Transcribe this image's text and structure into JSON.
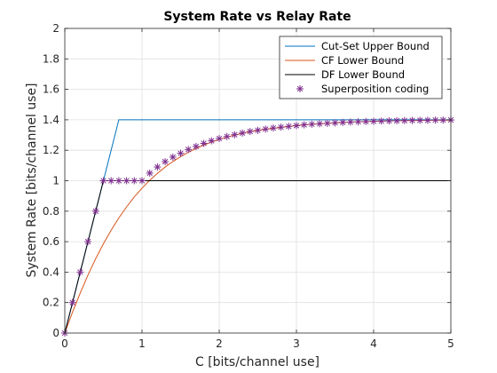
{
  "chart_data": {
    "type": "line",
    "title": "System Rate vs Relay Rate",
    "xlabel": "C [bits/channel use]",
    "ylabel": "System Rate [bits/channel use]",
    "xlim": [
      0,
      5
    ],
    "ylim": [
      0,
      2
    ],
    "xticks": [
      0,
      1,
      2,
      3,
      4,
      5
    ],
    "yticks": [
      0,
      0.2,
      0.4,
      0.6,
      0.8,
      1,
      1.2,
      1.4,
      1.6,
      1.8,
      2
    ],
    "grid": true,
    "legend_position": "top-right",
    "series": [
      {
        "name": "Cut-Set Upper Bound",
        "style": "line",
        "color": "#0072BD",
        "x": [
          0,
          0.5,
          0.7,
          5
        ],
        "y": [
          0,
          1.0,
          1.4,
          1.4
        ]
      },
      {
        "name": "CF Lower Bound",
        "style": "line",
        "color": "#D95319",
        "x": [
          0,
          0.1,
          0.2,
          0.3,
          0.4,
          0.5,
          0.6,
          0.7,
          0.8,
          0.9,
          1.0,
          1.1,
          1.2,
          1.3,
          1.4,
          1.5,
          1.6,
          1.7,
          1.8,
          1.9,
          2.0,
          2.2,
          2.4,
          2.6,
          2.8,
          3.0,
          3.2,
          3.4,
          3.6,
          3.8,
          4.0,
          4.2,
          4.4,
          4.6,
          4.8,
          5.0
        ],
        "y": [
          0,
          0.137,
          0.263,
          0.38,
          0.488,
          0.586,
          0.675,
          0.756,
          0.828,
          0.894,
          0.951,
          1.003,
          1.049,
          1.09,
          1.126,
          1.158,
          1.187,
          1.212,
          1.234,
          1.254,
          1.271,
          1.3,
          1.322,
          1.338,
          1.35,
          1.362,
          1.371,
          1.377,
          1.383,
          1.387,
          1.39,
          1.393,
          1.395,
          1.396,
          1.397,
          1.398
        ]
      },
      {
        "name": "DF Lower Bound",
        "style": "line",
        "color": "#000000",
        "x": [
          0,
          0.5,
          5
        ],
        "y": [
          0,
          1.0,
          1.0
        ]
      },
      {
        "name": "Superposition coding",
        "style": "marker",
        "marker": "asterisk",
        "color": "#7E2F8E",
        "x": [
          0,
          0.1,
          0.2,
          0.3,
          0.4,
          0.5,
          0.6,
          0.7,
          0.8,
          0.9,
          1.0,
          1.1,
          1.2,
          1.3,
          1.4,
          1.5,
          1.6,
          1.7,
          1.8,
          1.9,
          2.0,
          2.1,
          2.2,
          2.3,
          2.4,
          2.5,
          2.6,
          2.7,
          2.8,
          2.9,
          3.0,
          3.1,
          3.2,
          3.3,
          3.4,
          3.5,
          3.6,
          3.7,
          3.8,
          3.9,
          4.0,
          4.1,
          4.2,
          4.3,
          4.4,
          4.5,
          4.6,
          4.7,
          4.8,
          4.9,
          5.0
        ],
        "y": [
          0,
          0.2,
          0.4,
          0.6,
          0.8,
          1.0,
          1.0,
          1.0,
          1.0,
          1.0,
          1.0,
          1.05,
          1.09,
          1.125,
          1.155,
          1.18,
          1.205,
          1.225,
          1.245,
          1.262,
          1.277,
          1.29,
          1.302,
          1.313,
          1.323,
          1.331,
          1.339,
          1.346,
          1.352,
          1.357,
          1.362,
          1.367,
          1.371,
          1.374,
          1.377,
          1.38,
          1.383,
          1.385,
          1.387,
          1.389,
          1.39,
          1.392,
          1.393,
          1.394,
          1.395,
          1.396,
          1.397,
          1.397,
          1.398,
          1.398,
          1.399
        ]
      }
    ]
  }
}
